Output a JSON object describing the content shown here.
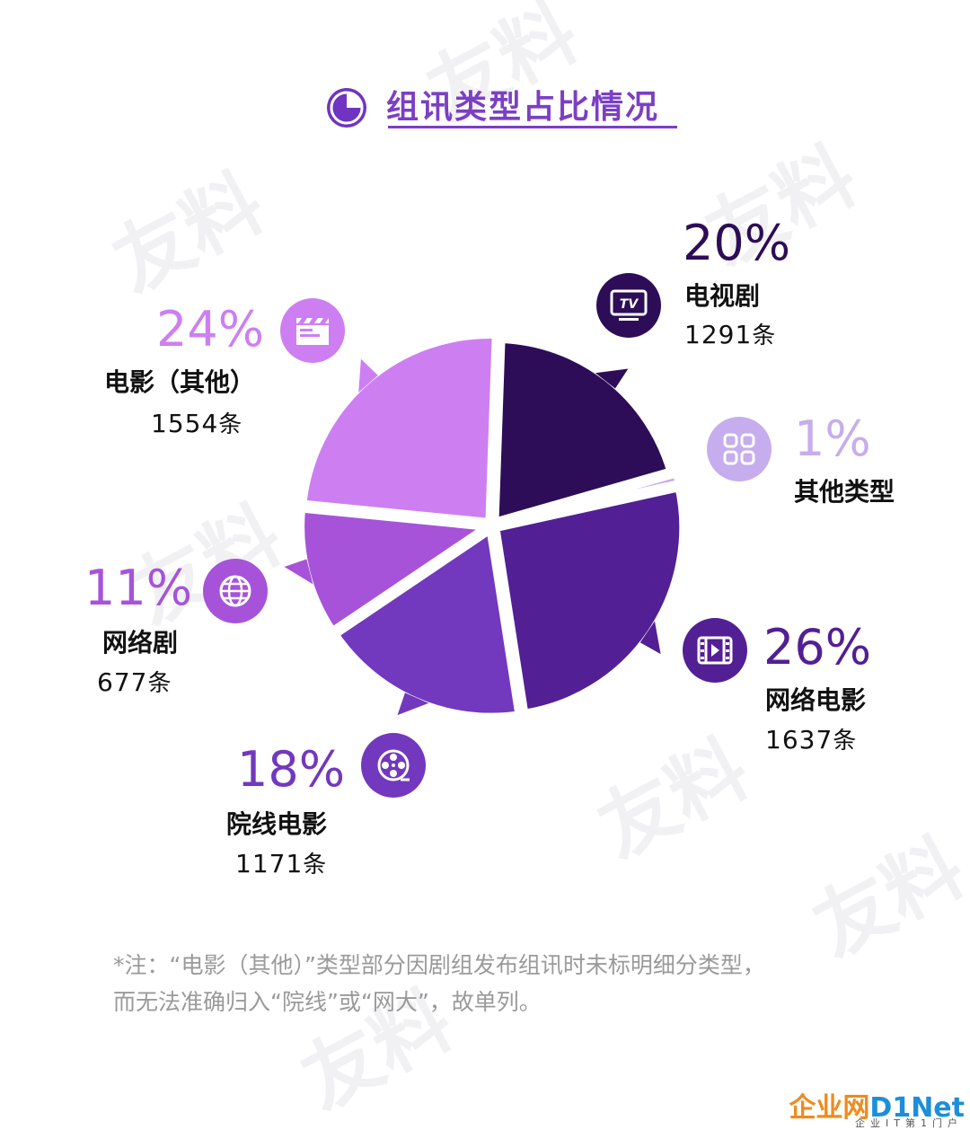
{
  "header": {
    "title": "组讯类型占比情况"
  },
  "chart_data": {
    "type": "pie",
    "title": "组讯类型占比情况",
    "unit": "条",
    "slices": [
      {
        "label": "电视剧",
        "percent": 20,
        "count": 1291,
        "count_text": "1291",
        "pct_text": "20%",
        "color": "#2d0d57",
        "icon": "tv-icon"
      },
      {
        "label": "其他类型",
        "percent": 1,
        "count": null,
        "count_text": "",
        "pct_text": "1%",
        "color": "#c6adee",
        "icon": "grid-icon"
      },
      {
        "label": "网络电影",
        "percent": 26,
        "count": 1637,
        "count_text": "1637",
        "pct_text": "26%",
        "color": "#521f94",
        "icon": "film-strip-icon"
      },
      {
        "label": "院线电影",
        "percent": 18,
        "count": 1171,
        "count_text": "1171",
        "pct_text": "18%",
        "color": "#7238bd",
        "icon": "film-reel-icon"
      },
      {
        "label": "网络剧",
        "percent": 11,
        "count": 677,
        "count_text": "677",
        "pct_text": "11%",
        "color": "#a653da",
        "icon": "globe-icon"
      },
      {
        "label": "电影（其他）",
        "percent": 24,
        "count": 1554,
        "count_text": "1554",
        "pct_text": "24%",
        "color": "#cd7ff2",
        "icon": "clapperboard-icon"
      }
    ]
  },
  "labels": {
    "tv": {
      "pct": "20%",
      "name": "电视剧",
      "count": "1291",
      "unit": "条"
    },
    "other": {
      "pct": "1%",
      "name": "其他类型"
    },
    "webmovie": {
      "pct": "26%",
      "name": "网络电影",
      "count": "1637",
      "unit": "条"
    },
    "cinema": {
      "pct": "18%",
      "name": "院线电影",
      "count": "1171",
      "unit": "条"
    },
    "webseries": {
      "pct": "11%",
      "name": "网络剧",
      "count": "677",
      "unit": "条"
    },
    "film": {
      "pct": "24%",
      "name": "电影（其他）",
      "count": "1554",
      "unit": "条"
    }
  },
  "note": {
    "line1": "*注：“电影（其他）”类型部分因剧组发布组讯时未标明细分类型，",
    "line2": "而无法准确归入“院线”或“网大”，故单列。"
  },
  "watermark": {
    "text": "友料"
  },
  "logo": {
    "text_a": "企业网",
    "text_b": "D1Net",
    "tagline": "企业IT第1门户"
  }
}
